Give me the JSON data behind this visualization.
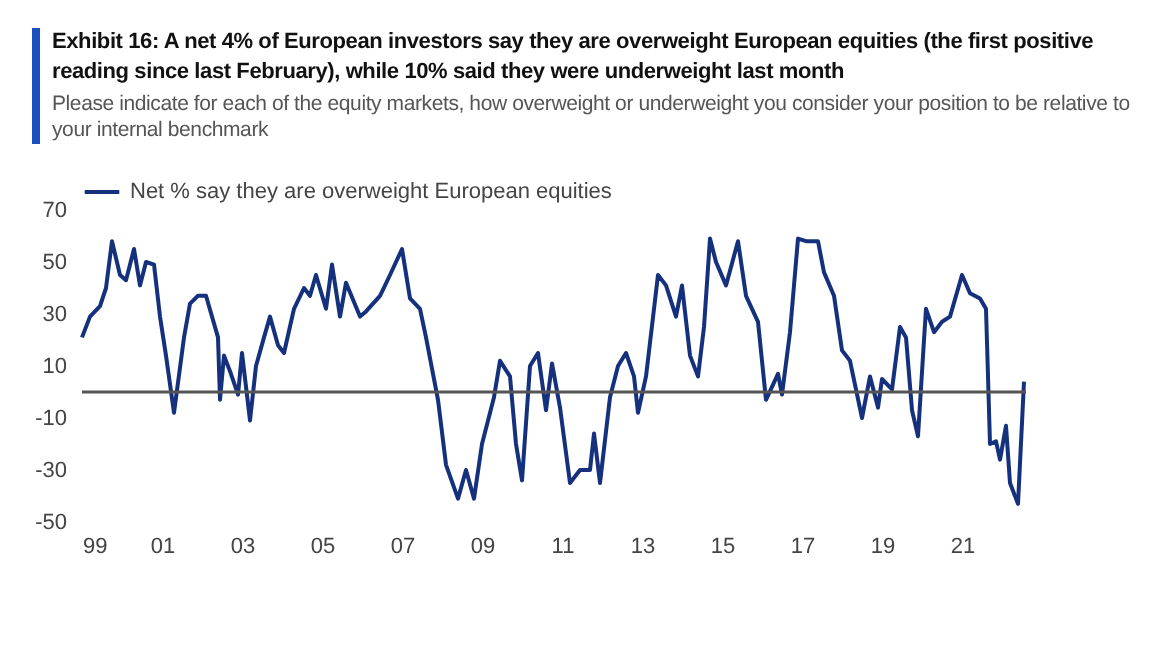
{
  "chart_data": {
    "type": "line",
    "title": "Exhibit 16: A net 4% of European investors say they are overweight European equities (the first positive reading since last February), while 10% said they were underweight last month",
    "subtitle": "Please indicate for each of the equity markets, how overweight or underweight you consider your position to be relative to your internal benchmark",
    "series": [
      {
        "name": "Net % say they are overweight European equities",
        "color": "#15317e",
        "x": [
          1999.0,
          1999.2,
          1999.45,
          1999.6,
          1999.75,
          1999.95,
          2000.1,
          2000.3,
          2000.45,
          2000.6,
          2000.8,
          2000.95,
          2001.1,
          2001.3,
          2001.55,
          2001.7,
          2001.9,
          2002.1,
          2002.4,
          2002.45,
          2002.55,
          2002.7,
          2002.9,
          2003.0,
          2003.2,
          2003.35,
          2003.55,
          2003.7,
          2003.9,
          2004.05,
          2004.3,
          2004.55,
          2004.7,
          2004.85,
          2005.1,
          2005.25,
          2005.45,
          2005.6,
          2005.95,
          2006.1,
          2006.45,
          2006.7,
          2007.0,
          2007.2,
          2007.45,
          2007.6,
          2007.9,
          2008.1,
          2008.4,
          2008.6,
          2008.8,
          2009.0,
          2009.3,
          2009.45,
          2009.7,
          2009.85,
          2010.0,
          2010.2,
          2010.4,
          2010.6,
          2010.75,
          2010.95,
          2011.2,
          2011.45,
          2011.7,
          2011.8,
          2011.95,
          2012.2,
          2012.4,
          2012.6,
          2012.8,
          2012.9,
          2013.1,
          2013.4,
          2013.6,
          2013.85,
          2014.0,
          2014.2,
          2014.4,
          2014.55,
          2014.7,
          2014.85,
          2015.1,
          2015.4,
          2015.6,
          2015.9,
          2016.1,
          2016.4,
          2016.5,
          2016.7,
          2016.9,
          2017.1,
          2017.4,
          2017.55,
          2017.8,
          2018.0,
          2018.2,
          2018.5,
          2018.7,
          2018.9,
          2019.0,
          2019.25,
          2019.45,
          2019.6,
          2019.75,
          2019.9,
          2020.05,
          2020.1,
          2020.3,
          2020.5,
          2020.7,
          2021.0,
          2021.2,
          2021.45,
          2021.6,
          2021.7,
          2021.85,
          2021.95,
          2022.1,
          2022.2,
          2022.4,
          2022.55
        ],
        "values": [
          21,
          29,
          33,
          40,
          58,
          45,
          43,
          55,
          41,
          50,
          49,
          29,
          14,
          -8,
          21,
          34,
          37,
          37,
          21,
          -3,
          14,
          8,
          -1,
          15,
          -11,
          10,
          21,
          29,
          18,
          15,
          32,
          40,
          37,
          45,
          32,
          49,
          29,
          42,
          29,
          31,
          37,
          45,
          55,
          36,
          32,
          21,
          -3,
          -28,
          -41,
          -30,
          -41,
          -20,
          -2,
          12,
          6,
          -20,
          -34,
          10,
          15,
          -7,
          11,
          -6,
          -35,
          -30,
          -30,
          -16,
          -35,
          -2,
          10,
          15,
          6,
          -8,
          6,
          45,
          41,
          29,
          41,
          14,
          6,
          25,
          59,
          50,
          41,
          58,
          37,
          27,
          -3,
          7,
          -1,
          23,
          59,
          58,
          58,
          46,
          37,
          16,
          12,
          -10,
          6,
          -6,
          5,
          1,
          25,
          21,
          -7,
          -17,
          20,
          32,
          23,
          27,
          29,
          45,
          38,
          36,
          32,
          -20,
          -19,
          -26,
          -13,
          -35,
          -43,
          4
        ]
      }
    ],
    "xlim": [
      1999,
      2022.6
    ],
    "xticks": [
      {
        "value": 1999,
        "label": "99"
      },
      {
        "value": 2001,
        "label": "01"
      },
      {
        "value": 2003,
        "label": "03"
      },
      {
        "value": 2005,
        "label": "05"
      },
      {
        "value": 2007,
        "label": "07"
      },
      {
        "value": 2009,
        "label": "09"
      },
      {
        "value": 2011,
        "label": "11"
      },
      {
        "value": 2013,
        "label": "13"
      },
      {
        "value": 2015,
        "label": "15"
      },
      {
        "value": 2017,
        "label": "17"
      },
      {
        "value": 2019,
        "label": "19"
      },
      {
        "value": 2021,
        "label": "21"
      }
    ],
    "ylim": [
      -50,
      70
    ],
    "yticks": [
      -50,
      -30,
      -10,
      10,
      30,
      50,
      70
    ],
    "ref_lines": [
      {
        "axis": "y",
        "value": 0,
        "color": "#555555"
      }
    ],
    "legend": "top"
  }
}
